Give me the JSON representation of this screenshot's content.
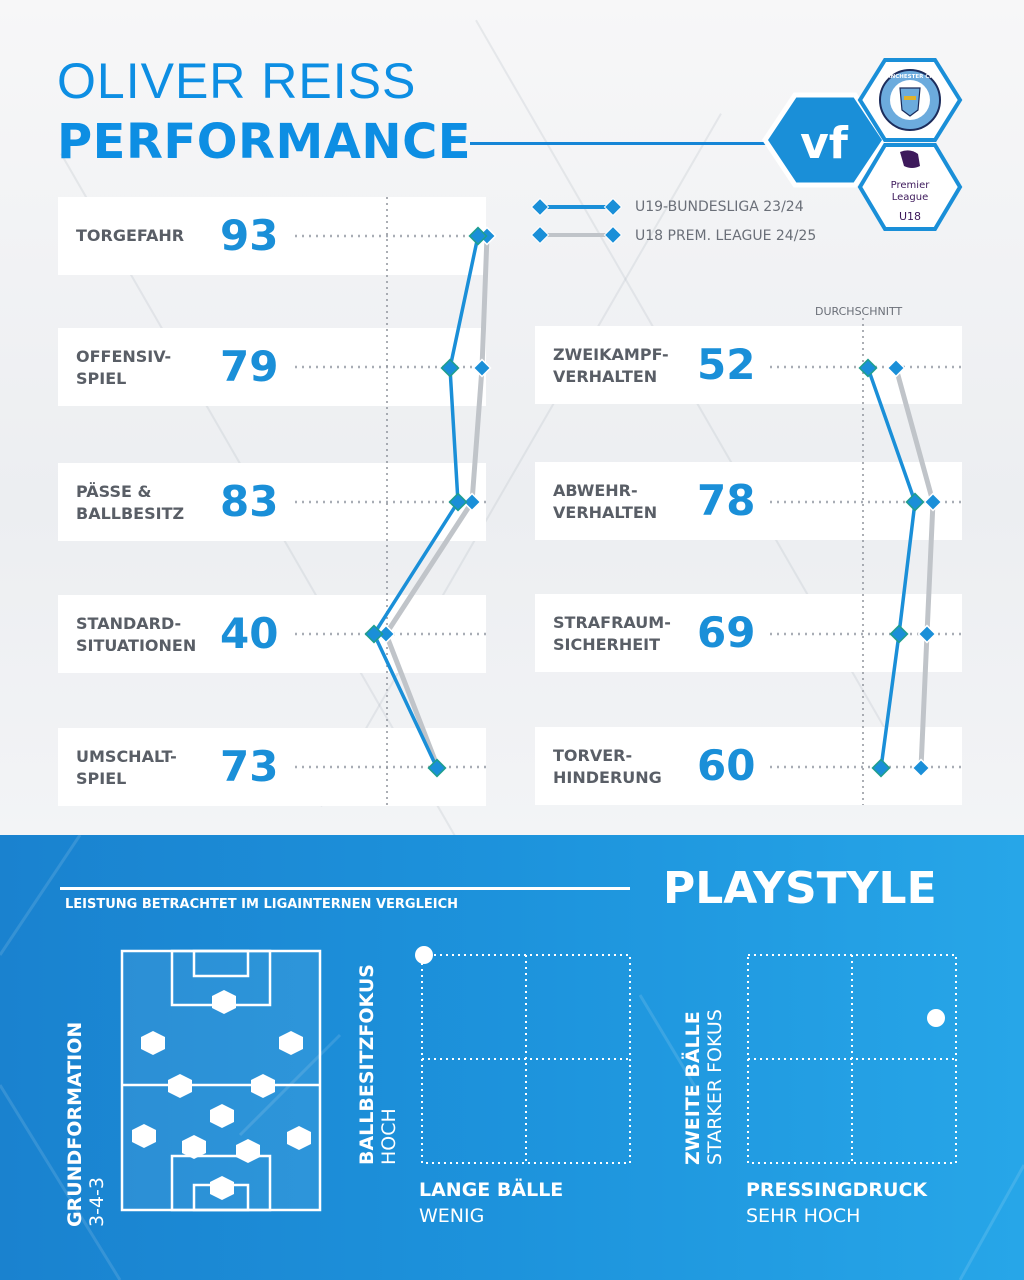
{
  "header": {
    "name": "OLIVER REISS",
    "subtitle": "PERFORMANCE"
  },
  "logos": {
    "club_badge": "MANCHESTER CITY",
    "brand": "vf",
    "league_line1": "Premier",
    "league_line2": "League",
    "league_age": "U18"
  },
  "legend": {
    "series1": "U19-BUNDESLIGA 23/24",
    "series2": "U18 PREM. LEAGUE 24/25",
    "average": "DURCHSCHNITT"
  },
  "colors": {
    "series1": "#1a8fd8",
    "series2": "#b8bcc2",
    "accent": "#0d8ee3"
  },
  "stats_left": [
    {
      "label": "TORGEFAHR",
      "value": "93"
    },
    {
      "label": "OFFENSIV-\nSPIEL",
      "value": "79"
    },
    {
      "label": "PÄSSE &\nBALLBESITZ",
      "value": "83"
    },
    {
      "label": "STANDARD-\nSITUATIONEN",
      "value": "40"
    },
    {
      "label": "UMSCHALT-\nSPIEL",
      "value": "73"
    }
  ],
  "stats_right": [
    {
      "label": "ZWEIKAMPF-\nVERHALTEN",
      "value": "52"
    },
    {
      "label": "ABWEHR-\nVERHALTEN",
      "value": "78"
    },
    {
      "label": "STRAFRAUM-\nSICHERHEIT",
      "value": "69"
    },
    {
      "label": "TORVER-\nHINDERUNG",
      "value": "60"
    }
  ],
  "playstyle": {
    "title": "PLAYSTYLE",
    "note": "LEISTUNG BETRACHTET IM LIGAINTERNEN VERGLEICH",
    "formation_label": "GRUNDFORMATION",
    "formation_value": "3-4-3",
    "chart1_y_label": "BALLBESITZFOKUS",
    "chart1_y_value": "HOCH",
    "chart1_x_label": "LANGE BÄLLE",
    "chart1_x_value": "WENIG",
    "chart2_y_label": "ZWEITE BÄLLE",
    "chart2_y_value": "STARKER FOKUS",
    "chart2_x_label": "PRESSINGDRUCK",
    "chart2_x_value": "SEHR HOCH"
  }
}
